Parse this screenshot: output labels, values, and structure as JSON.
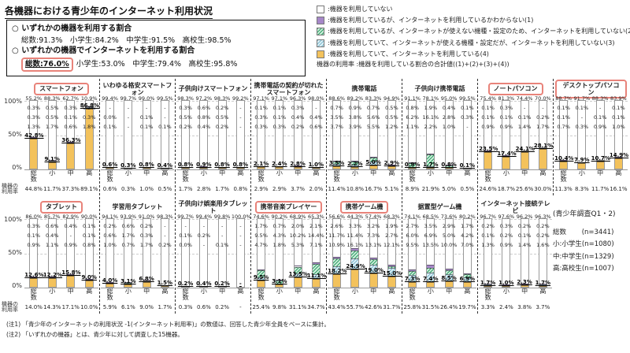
{
  "title": "各機器における青少年のインターネット利用状況",
  "summary_box": {
    "line1_label": "○ いずれかの機器を利用する割合",
    "line1_values": "総数:91.3%　小学生:84.2%　中学生:91.5%　高校生:98.5%",
    "line2_label": "○ いずれかの機器でインターネットを利用する割合",
    "line2_highlight": "総数:76.0%",
    "line2_values": "小学生:53.0%　中学生:79.4%　高校生:95.8%"
  },
  "legend": {
    "items": [
      {
        "swatch": "white",
        "label": ":機器を利用していない"
      },
      {
        "swatch": "purple",
        "label": ":機器を利用しているが、インターネットを利用しているかわからない(1)"
      },
      {
        "swatch": "green",
        "label": ":機器を利用しているが、インターネットが使えない機種・設定のため、インターネットを利用していない(2)"
      },
      {
        "swatch": "blue",
        "label": ":機器を利用していて、インターネットが使える機種・設定だが、インターネットを利用していない(3)"
      },
      {
        "swatch": "orange",
        "label": ":機器を利用していて、インターネットを利用している(4)"
      }
    ],
    "note": "機器の利用率 :機器を利用している割合の合計値((1)+(2)+(3)+(4))"
  },
  "axis": {
    "y_ticks": [
      "100%",
      "50%",
      "0%"
    ],
    "usage_label": "機器の利用率"
  },
  "survey_info": {
    "title": "(青少年調査Q1・2)",
    "lines": [
      "総数　　 (n=3441)",
      "小:小学生(n=1080)",
      "中:中学生(n=1329)",
      "高:高校生(n=1007)"
    ]
  },
  "notes": [
    "(注1) 「青少年のインターネットの利用状況 -1(インターネット利用率)」の数値は、回答した青少年全員をベースに集計。",
    "(注2) 「いずれかの機器」とは、青少年に対して調査した15機器。"
  ],
  "colors": {
    "orange": "#F3C25C",
    "purple": "#A687C8",
    "green_line": "#2E9E66",
    "green_bg": "#CDEEDA",
    "blue_line": "#79B8CC",
    "blue_bg": "#DFF0F6",
    "red_box": "#E8837A"
  },
  "chart_data": {
    "type": "bar",
    "stacked": true,
    "ylim": [
      0,
      100
    ],
    "columns": [
      "総数",
      "小",
      "中",
      "高"
    ],
    "segment_order_top_to_bottom": [
      "機器を利用していない",
      "わからない(1)",
      "使えない機種・設定(2)",
      "使える機種・設定だが未利用(3)",
      "インターネットを利用している(4)"
    ],
    "rows": [
      [
        {
          "title": "スマートフォン",
          "boxed": true,
          "bars": [
            {
              "labels": [
                "55.2%",
                "0.3%",
                "0.3%",
                "1.3%",
                "42.8%"
              ],
              "usage": "44.8%"
            },
            {
              "labels": [
                "88.3%",
                "0.5%",
                "0.5%",
                "1.7%",
                "9.1%"
              ],
              "usage": "11.7%"
            },
            {
              "labels": [
                "62.7%",
                "0.3%",
                "0.1%",
                "0.6%",
                "36.3%"
              ],
              "usage": "37.3%"
            },
            {
              "labels": [
                "10.9%",
                "0.2%",
                "0.3%",
                "1.8%",
                "86.8%"
              ],
              "usage": "89.1%"
            }
          ]
        },
        {
          "title": "いわゆる格安スマートフォン",
          "boxed": false,
          "bars": [
            {
              "labels": [
                "99.4%",
                "-",
                "0.0%",
                "0.1%",
                "0.6%"
              ],
              "usage": "0.6%"
            },
            {
              "labels": [
                "99.7%",
                "-",
                "-",
                "-",
                "0.3%"
              ],
              "usage": "0.3%"
            },
            {
              "labels": [
                "99.0%",
                "-",
                "0.1%",
                "0.1%",
                "0.8%"
              ],
              "usage": "1.0%"
            },
            {
              "labels": [
                "99.5%",
                "-",
                "-",
                "0.1%",
                "0.4%"
              ],
              "usage": "0.5%"
            }
          ]
        },
        {
          "title": "子供向けスマートフォン",
          "boxed": false,
          "bars": [
            {
              "labels": [
                "98.3%",
                "0.3%",
                "0.5%",
                "0.2%",
                "0.8%"
              ],
              "usage": "1.7%"
            },
            {
              "labels": [
                "97.2%",
                "0.6%",
                "0.8%",
                "0.4%",
                "0.9%"
              ],
              "usage": "2.8%"
            },
            {
              "labels": [
                "98.3%",
                "0.2%",
                "0.5%",
                "0.2%",
                "0.8%"
              ],
              "usage": "1.7%"
            },
            {
              "labels": [
                "99.2%",
                "-",
                "-",
                "-",
                "0.8%"
              ],
              "usage": "0.8%"
            }
          ]
        },
        {
          "title": "携帯電話の契約が切れたスマートフォン",
          "boxed": false,
          "bars": [
            {
              "labels": [
                "97.1%",
                "0.1%",
                "0.3%",
                "0.3%",
                "2.1%"
              ],
              "usage": "2.9%"
            },
            {
              "labels": [
                "97.1%",
                "0.1%",
                "0.1%",
                "0.3%",
                "2.4%"
              ],
              "usage": "2.9%"
            },
            {
              "labels": [
                "96.3%",
                "0.3%",
                "0.4%",
                "0.2%",
                "2.8%"
              ],
              "usage": "3.7%"
            },
            {
              "labels": [
                "98.0%",
                "-",
                "0.4%",
                "0.6%",
                "1.0%"
              ],
              "usage": "2.0%"
            }
          ]
        },
        {
          "title": "携帯電話",
          "boxed": false,
          "bars": [
            {
              "labels": [
                "88.6%",
                "0.7%",
                "3.5%",
                "3.7%",
                "3.5%"
              ],
              "usage": "11.4%"
            },
            {
              "labels": [
                "89.2%",
                "0.9%",
                "3.8%",
                "3.9%",
                "2.2%"
              ],
              "usage": "10.8%"
            },
            {
              "labels": [
                "83.3%",
                "0.7%",
                "5.6%",
                "5.5%",
                "5.0%"
              ],
              "usage": "16.7%"
            },
            {
              "labels": [
                "94.9%",
                "0.5%",
                "0.5%",
                "1.2%",
                "2.9%"
              ],
              "usage": "5.1%"
            }
          ]
        },
        {
          "title": "子供向け携帯電話",
          "boxed": false,
          "bars": [
            {
              "labels": [
                "91.1%",
                "0.8%",
                "6.2%",
                "1.1%",
                "0.9%"
              ],
              "usage": "8.9%"
            },
            {
              "labels": [
                "78.1%",
                "1.9%",
                "16.1%",
                "2.2%",
                "1.7%"
              ],
              "usage": "21.9%"
            },
            {
              "labels": [
                "95.0%",
                "0.4%",
                "2.8%",
                "1.0%",
                "0.8%"
              ],
              "usage": "5.0%"
            },
            {
              "labels": [
                "99.5%",
                "0.1%",
                "0.3%",
                "-",
                "0.1%"
              ],
              "usage": "0.5%"
            }
          ]
        },
        {
          "title": "ノートパソコン",
          "boxed": true,
          "bars": [
            {
              "labels": [
                "75.4%",
                "0.1%",
                "0.1%",
                "0.9%",
                "23.5%"
              ],
              "usage": "24.6%"
            },
            {
              "labels": [
                "81.3%",
                "0.3%",
                "0.1%",
                "0.9%",
                "17.4%"
              ],
              "usage": "18.7%"
            },
            {
              "labels": [
                "74.4%",
                "-",
                "0.1%",
                "1.4%",
                "24.1%"
              ],
              "usage": "25.6%"
            },
            {
              "labels": [
                "70.0%",
                "-",
                "0.2%",
                "1.7%",
                "28.1%"
              ],
              "usage": "30.0%"
            }
          ]
        },
        {
          "title": "デスクトップパソコン",
          "boxed": true,
          "bars": [
            {
              "labels": [
                "88.7%",
                "0.1%",
                "0.1%",
                "0.7%",
                "10.4%"
              ],
              "usage": "11.3%"
            },
            {
              "labels": [
                "91.7%",
                "0.1%",
                "-",
                "0.3%",
                "7.9%"
              ],
              "usage": "8.3%"
            },
            {
              "labels": [
                "88.3%",
                "-",
                "0.1%",
                "0.9%",
                "10.7%"
              ],
              "usage": "11.7%"
            },
            {
              "labels": [
                "83.9%",
                "0.1%",
                "0.1%",
                "1.0%",
                "14.9%"
              ],
              "usage": "16.1%"
            }
          ]
        }
      ],
      [
        {
          "title": "タブレット",
          "boxed": true,
          "bars": [
            {
              "labels": [
                "86.0%",
                "0.3%",
                "0.1%",
                "0.9%",
                "12.6%"
              ],
              "usage": "14.0%"
            },
            {
              "labels": [
                "85.7%",
                "0.6%",
                "0.4%",
                "1.1%",
                "12.2%"
              ],
              "usage": "14.3%"
            },
            {
              "labels": [
                "82.9%",
                "0.4%",
                "-",
                "0.9%",
                "15.8%"
              ],
              "usage": "17.1%"
            },
            {
              "labels": [
                "90.0%",
                "0.1%",
                "0.1%",
                "0.8%",
                "9.0%"
              ],
              "usage": "10.0%"
            }
          ]
        },
        {
          "title": "学習用タブレット",
          "boxed": false,
          "bars": [
            {
              "labels": [
                "94.1%",
                "0.2%",
                "0.6%",
                "1.0%",
                "4.0%"
              ],
              "usage": "5.9%"
            },
            {
              "labels": [
                "93.9%",
                "0.6%",
                "1.7%",
                "0.7%",
                "3.1%"
              ],
              "usage": "6.1%"
            },
            {
              "labels": [
                "91.0%",
                "0.2%",
                "0.3%",
                "1.7%",
                "6.8%"
              ],
              "usage": "9.0%"
            },
            {
              "labels": [
                "98.3%",
                "-",
                "-",
                "0.2%",
                "1.5%"
              ],
              "usage": "1.7%"
            }
          ]
        },
        {
          "title": "子供向け娯楽用タブレット",
          "boxed": false,
          "bars": [
            {
              "labels": [
                "99.7%",
                "-",
                "0.1%",
                "0.0%",
                "0.2%"
              ],
              "usage": "0.3%"
            },
            {
              "labels": [
                "99.4%",
                "-",
                "0.2%",
                "-",
                "0.4%"
              ],
              "usage": "0.6%"
            },
            {
              "labels": [
                "99.8%",
                "-",
                "-",
                "0.1%",
                "0.2%"
              ],
              "usage": "0.2%"
            },
            {
              "labels": [
                "100.0%",
                "-",
                "-",
                "-",
                "-"
              ],
              "usage": "-"
            }
          ]
        },
        {
          "title": "携帯音楽プレイヤー",
          "boxed": true,
          "bars": [
            {
              "labels": [
                "74.6%",
                "1.7%",
                "9.5%",
                "4.7%",
                "9.5%"
              ],
              "usage": "25.4%"
            },
            {
              "labels": [
                "90.2%",
                "0.7%",
                "4.3%",
                "1.8%",
                "3.1%"
              ],
              "usage": "9.8%"
            },
            {
              "labels": [
                "68.9%",
                "2.0%",
                "10.2%",
                "5.3%",
                "13.5%"
              ],
              "usage": "31.1%"
            },
            {
              "labels": [
                "65.3%",
                "2.1%",
                "14.4%",
                "7.1%",
                "11.1%"
              ],
              "usage": "34.7%"
            }
          ]
        },
        {
          "title": "携帯ゲーム機",
          "boxed": true,
          "bars": [
            {
              "labels": [
                "56.6%",
                "2.6%",
                "11.7%",
                "10.9%",
                "18.2%"
              ],
              "usage": "43.4%"
            },
            {
              "labels": [
                "44.3%",
                "3.3%",
                "11.4%",
                "16.1%",
                "24.9%"
              ],
              "usage": "55.7%"
            },
            {
              "labels": [
                "57.4%",
                "3.2%",
                "7.3%",
                "13.1%",
                "19.0%"
              ],
              "usage": "42.6%"
            },
            {
              "labels": [
                "68.3%",
                "1.9%",
                "2.7%",
                "12.1%",
                "15.0%"
              ],
              "usage": "31.7%"
            }
          ]
        },
        {
          "title": "据置型ゲーム機",
          "boxed": false,
          "bars": [
            {
              "labels": [
                "74.1%",
                "2.7%",
                "6.0%",
                "9.5%",
                "7.3%"
              ],
              "usage": "25.8%"
            },
            {
              "labels": [
                "68.5%",
                "3.5%",
                "6.9%",
                "13.5%",
                "7.4%"
              ],
              "usage": "31.5%"
            },
            {
              "labels": [
                "73.6%",
                "2.9%",
                "5.0%",
                "10.0%",
                "8.5%"
              ],
              "usage": "26.4%"
            },
            {
              "labels": [
                "80.2%",
                "1.7%",
                "4.2%",
                "7.0%",
                "6.9%"
              ],
              "usage": "19.7%"
            }
          ]
        },
        {
          "title": "インターネット接続テレビ",
          "boxed": false,
          "bars": [
            {
              "labels": [
                "96.7%",
                "0.2%",
                "0.1%",
                "1.3%",
                "1.7%"
              ],
              "usage": "3.3%"
            },
            {
              "labels": [
                "97.6%",
                "0.3%",
                "0.2%",
                "0.9%",
                "1.0%"
              ],
              "usage": "2.4%"
            },
            {
              "labels": [
                "96.2%",
                "0.2%",
                "0.1%",
                "1.4%",
                "2.3%"
              ],
              "usage": "3.8%"
            },
            {
              "labels": [
                "96.3%",
                "0.2%",
                "0.2%",
                "1.6%",
                "1.7%"
              ],
              "usage": "3.7%"
            }
          ]
        }
      ]
    ]
  }
}
